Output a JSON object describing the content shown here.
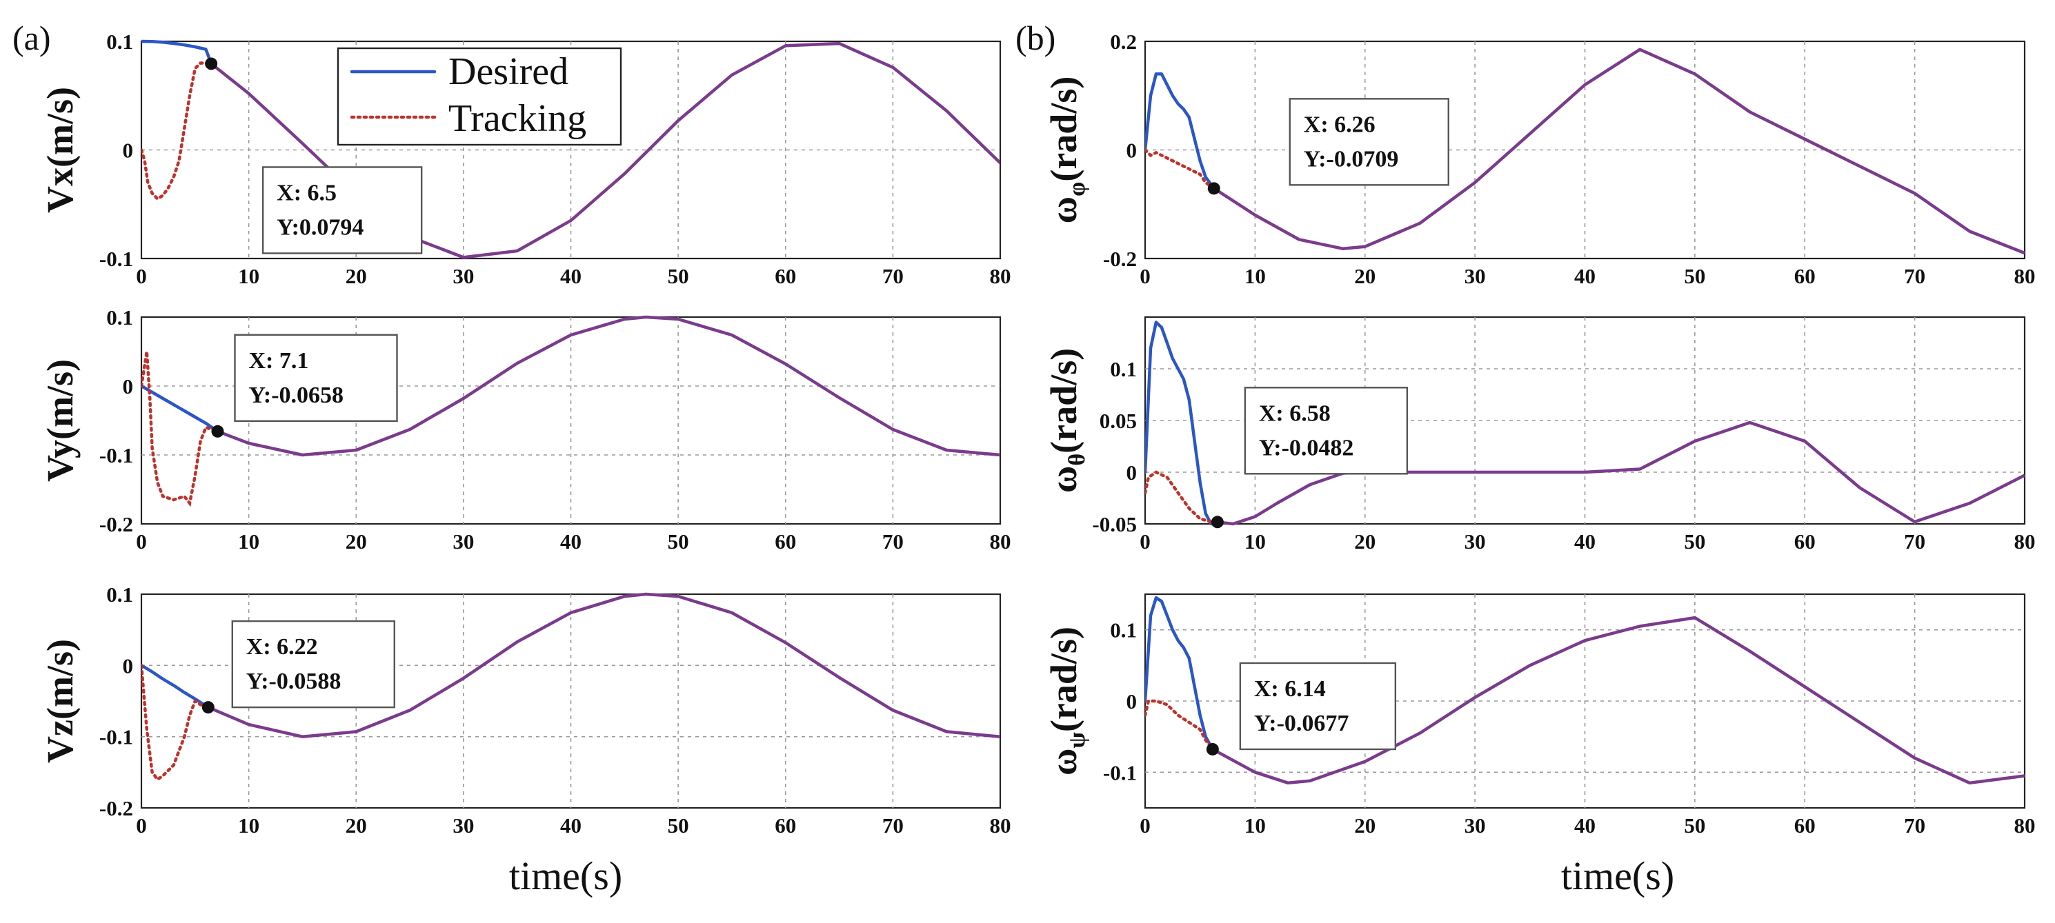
{
  "panel_labels": [
    "(a)",
    "(b)"
  ],
  "legend": {
    "desired": "Desired",
    "tracking": "Tracking"
  },
  "colors": {
    "desired": "#2a56c8",
    "tracking": "#c0312b",
    "combined": "#7b3b8c"
  },
  "chart_data": [
    {
      "type": "line",
      "id": "vx",
      "column": 0,
      "ylabel_main": "Vx",
      "ylabel_sub": "",
      "ylabel_rest": "(m/s)",
      "xlabel": "time(s)",
      "xlim": [
        0,
        80
      ],
      "ylim": [
        -0.1,
        0.1
      ],
      "xticks": [
        "0",
        "10",
        "20",
        "30",
        "40",
        "50",
        "60",
        "70",
        "80"
      ],
      "yticks": [
        {
          "v": 0.1,
          "t": "0.1"
        },
        {
          "v": 0,
          "t": "0"
        },
        {
          "v": -0.1,
          "t": "-0.1"
        }
      ],
      "series": [
        {
          "name": "Desired",
          "x": [
            0,
            1,
            2,
            3,
            4,
            5,
            6,
            6.5
          ],
          "y": [
            0.1,
            0.0998,
            0.0992,
            0.0981,
            0.0967,
            0.0949,
            0.0927,
            0.0794
          ]
        },
        {
          "name": "Tracking",
          "x": [
            0,
            0.3,
            0.6,
            1,
            1.5,
            2,
            2.5,
            3,
            3.5,
            4,
            4.5,
            5,
            5.5,
            6,
            6.5
          ],
          "y": [
            0,
            -0.01,
            -0.03,
            -0.04,
            -0.045,
            -0.042,
            -0.035,
            -0.025,
            -0.01,
            0.02,
            0.05,
            0.075,
            0.08,
            0.08,
            0.0794
          ]
        },
        {
          "name": "Combined",
          "x": [
            6.5,
            10,
            15,
            20,
            25,
            30,
            35,
            40,
            45,
            50,
            55,
            60,
            65,
            70,
            75,
            80
          ],
          "y": [
            0.0794,
            0.052,
            0.006,
            -0.041,
            -0.08,
            -0.099,
            -0.093,
            -0.065,
            -0.022,
            0.027,
            0.069,
            0.096,
            0.098,
            0.076,
            0.036,
            -0.012
          ]
        }
      ],
      "datatip": {
        "x": 6.5,
        "y": 0.0794,
        "label_x": "X: 6.5",
        "label_y": "Y:0.0794"
      }
    },
    {
      "type": "line",
      "id": "vy",
      "column": 0,
      "ylabel_main": "Vy",
      "ylabel_sub": "",
      "ylabel_rest": "(m/s)",
      "xlabel": "time(s)",
      "xlim": [
        0,
        80
      ],
      "ylim": [
        -0.2,
        0.1
      ],
      "xticks": [
        "0",
        "10",
        "20",
        "30",
        "40",
        "50",
        "60",
        "70",
        "80"
      ],
      "yticks": [
        {
          "v": 0.1,
          "t": "0.1"
        },
        {
          "v": 0,
          "t": "0"
        },
        {
          "v": -0.1,
          "t": "-0.1"
        },
        {
          "v": -0.2,
          "t": "-0.2"
        }
      ],
      "series": [
        {
          "name": "Desired",
          "x": [
            0,
            1,
            2,
            3,
            4,
            5,
            6,
            7.1
          ],
          "y": [
            0,
            -0.009,
            -0.018,
            -0.027,
            -0.036,
            -0.045,
            -0.054,
            -0.0658
          ]
        },
        {
          "name": "Tracking",
          "x": [
            0,
            0.3,
            0.5,
            0.8,
            1,
            1.5,
            2,
            3,
            4,
            4.5,
            5,
            5.5,
            6,
            7.1
          ],
          "y": [
            0,
            0.03,
            0.05,
            -0.02,
            -0.09,
            -0.14,
            -0.16,
            -0.165,
            -0.16,
            -0.17,
            -0.13,
            -0.08,
            -0.06,
            -0.0658
          ]
        },
        {
          "name": "Combined",
          "x": [
            7.1,
            10,
            15,
            20,
            25,
            30,
            35,
            40,
            45,
            47,
            50,
            55,
            60,
            65,
            70,
            75,
            80
          ],
          "y": [
            -0.0658,
            -0.083,
            -0.1,
            -0.093,
            -0.063,
            -0.018,
            0.033,
            0.074,
            0.097,
            0.1,
            0.097,
            0.074,
            0.032,
            -0.017,
            -0.063,
            -0.093,
            -0.1
          ]
        }
      ],
      "datatip": {
        "x": 7.1,
        "y": -0.0658,
        "label_x": "X: 7.1",
        "label_y": "Y:-0.0658"
      }
    },
    {
      "type": "line",
      "id": "vz",
      "column": 0,
      "ylabel_main": "Vz",
      "ylabel_sub": "",
      "ylabel_rest": "(m/s)",
      "xlabel": "time(s)",
      "xlim": [
        0,
        80
      ],
      "ylim": [
        -0.2,
        0.1
      ],
      "xticks": [
        "0",
        "10",
        "20",
        "30",
        "40",
        "50",
        "60",
        "70",
        "80"
      ],
      "yticks": [
        {
          "v": 0.1,
          "t": "0.1"
        },
        {
          "v": 0,
          "t": "0"
        },
        {
          "v": -0.1,
          "t": "-0.1"
        },
        {
          "v": -0.2,
          "t": "-0.2"
        }
      ],
      "series": [
        {
          "name": "Desired",
          "x": [
            0,
            1,
            2,
            3,
            4,
            5,
            6.22
          ],
          "y": [
            0,
            -0.009,
            -0.019,
            -0.028,
            -0.038,
            -0.047,
            -0.0588
          ]
        },
        {
          "name": "Tracking",
          "x": [
            0,
            0.5,
            1,
            1.5,
            2,
            3,
            4,
            4.5,
            5,
            5.5,
            6.22
          ],
          "y": [
            0,
            -0.09,
            -0.15,
            -0.16,
            -0.155,
            -0.14,
            -0.1,
            -0.07,
            -0.05,
            -0.055,
            -0.0588
          ]
        },
        {
          "name": "Combined",
          "x": [
            6.22,
            10,
            15,
            20,
            25,
            30,
            35,
            40,
            45,
            47,
            50,
            55,
            60,
            65,
            70,
            75,
            80
          ],
          "y": [
            -0.0588,
            -0.083,
            -0.1,
            -0.093,
            -0.063,
            -0.018,
            0.033,
            0.074,
            0.097,
            0.1,
            0.097,
            0.074,
            0.032,
            -0.017,
            -0.063,
            -0.093,
            -0.1
          ]
        }
      ],
      "datatip": {
        "x": 6.22,
        "y": -0.0588,
        "label_x": "X: 6.22",
        "label_y": "Y:-0.0588"
      }
    },
    {
      "type": "line",
      "id": "wphi",
      "column": 1,
      "ylabel_main": "ω",
      "ylabel_sub": "φ",
      "ylabel_rest": "(rad/s)",
      "xlabel": "time(s)",
      "xlim": [
        0,
        80
      ],
      "ylim": [
        -0.2,
        0.2
      ],
      "xticks": [
        "0",
        "10",
        "20",
        "30",
        "40",
        "50",
        "60",
        "70",
        "80"
      ],
      "yticks": [
        {
          "v": 0.2,
          "t": "0.2"
        },
        {
          "v": 0,
          "t": "0"
        },
        {
          "v": -0.2,
          "t": "-0.2"
        }
      ],
      "series": [
        {
          "name": "Desired",
          "x": [
            0,
            0.5,
            1,
            1.5,
            2,
            2.5,
            3,
            3.5,
            4,
            4.5,
            5,
            5.5,
            6.26
          ],
          "y": [
            0,
            0.1,
            0.14,
            0.14,
            0.12,
            0.1,
            0.085,
            0.075,
            0.06,
            0.02,
            -0.02,
            -0.05,
            -0.0709
          ]
        },
        {
          "name": "Tracking",
          "x": [
            0,
            0.5,
            1,
            2,
            3,
            4,
            5,
            5.5,
            6.26
          ],
          "y": [
            0,
            -0.01,
            -0.005,
            -0.015,
            -0.025,
            -0.035,
            -0.045,
            -0.06,
            -0.0709
          ]
        },
        {
          "name": "Combined",
          "x": [
            6.26,
            10,
            14,
            18,
            20,
            25,
            30,
            35,
            40,
            45,
            50,
            55,
            60,
            65,
            70,
            75,
            80
          ],
          "y": [
            -0.0709,
            -0.12,
            -0.165,
            -0.182,
            -0.178,
            -0.135,
            -0.06,
            0.03,
            0.12,
            0.185,
            0.14,
            0.07,
            0.02,
            -0.03,
            -0.08,
            -0.15,
            -0.19
          ]
        }
      ],
      "datatip": {
        "x": 6.26,
        "y": -0.0709,
        "label_x": "X: 6.26",
        "label_y": "Y:-0.0709"
      }
    },
    {
      "type": "line",
      "id": "wtheta",
      "column": 1,
      "ylabel_main": "ω",
      "ylabel_sub": "θ",
      "ylabel_rest": "(rad/s)",
      "xlabel": "time(s)",
      "xlim": [
        0,
        80
      ],
      "ylim": [
        -0.05,
        0.15
      ],
      "xticks": [
        "0",
        "10",
        "20",
        "30",
        "40",
        "50",
        "60",
        "70",
        "80"
      ],
      "yticks": [
        {
          "v": 0.1,
          "t": "0.1"
        },
        {
          "v": 0.05,
          "t": "0.05"
        },
        {
          "v": 0,
          "t": "0"
        },
        {
          "v": -0.05,
          "t": "-0.05"
        }
      ],
      "series": [
        {
          "name": "Desired",
          "x": [
            0,
            0.5,
            1,
            1.5,
            2,
            2.5,
            3,
            3.5,
            4,
            4.5,
            5,
            5.5,
            6,
            6.58
          ],
          "y": [
            0,
            0.12,
            0.145,
            0.14,
            0.125,
            0.11,
            0.1,
            0.09,
            0.07,
            0.03,
            -0.01,
            -0.04,
            -0.05,
            -0.05
          ]
        },
        {
          "name": "Tracking",
          "x": [
            0,
            0.3,
            1,
            2,
            3,
            4,
            5,
            6,
            6.58
          ],
          "y": [
            -0.02,
            -0.005,
            0,
            -0.005,
            -0.02,
            -0.035,
            -0.045,
            -0.048,
            -0.0482
          ]
        },
        {
          "name": "Combined",
          "x": [
            6.58,
            8,
            10,
            12,
            15,
            18,
            20,
            25,
            30,
            35,
            40,
            45,
            50,
            55,
            60,
            65,
            70,
            75,
            80
          ],
          "y": [
            -0.0482,
            -0.05,
            -0.043,
            -0.03,
            -0.012,
            -0.001,
            0,
            0,
            0,
            0,
            0,
            0.003,
            0.03,
            0.048,
            0.03,
            -0.015,
            -0.048,
            -0.03,
            -0.003
          ]
        }
      ],
      "datatip": {
        "x": 6.58,
        "y": -0.0482,
        "label_x": "X: 6.58",
        "label_y": "Y:-0.0482"
      }
    },
    {
      "type": "line",
      "id": "wpsi",
      "column": 1,
      "ylabel_main": "ω",
      "ylabel_sub": "ψ",
      "ylabel_rest": "(rad/s)",
      "xlabel": "time(s)",
      "xlim": [
        0,
        80
      ],
      "ylim": [
        -0.15,
        0.15
      ],
      "xticks": [
        "0",
        "10",
        "20",
        "30",
        "40",
        "50",
        "60",
        "70",
        "80"
      ],
      "yticks": [
        {
          "v": 0.1,
          "t": "0.1"
        },
        {
          "v": 0,
          "t": "0"
        },
        {
          "v": -0.1,
          "t": "-0.1"
        }
      ],
      "series": [
        {
          "name": "Desired",
          "x": [
            0,
            0.5,
            1,
            1.5,
            2,
            2.5,
            3,
            3.5,
            4,
            4.5,
            5,
            5.5,
            6.14
          ],
          "y": [
            0,
            0.12,
            0.145,
            0.14,
            0.12,
            0.1,
            0.085,
            0.075,
            0.06,
            0.02,
            -0.02,
            -0.05,
            -0.0677
          ]
        },
        {
          "name": "Tracking",
          "x": [
            0,
            0.3,
            1,
            2,
            3,
            4,
            5,
            5.5,
            6.14
          ],
          "y": [
            -0.02,
            0,
            0,
            -0.005,
            -0.02,
            -0.03,
            -0.04,
            -0.055,
            -0.0677
          ]
        },
        {
          "name": "Combined",
          "x": [
            6.14,
            10,
            13,
            15,
            20,
            25,
            30,
            35,
            40,
            45,
            50,
            55,
            60,
            65,
            70,
            75,
            80
          ],
          "y": [
            -0.0677,
            -0.1,
            -0.115,
            -0.112,
            -0.085,
            -0.045,
            0.005,
            0.05,
            0.085,
            0.105,
            0.117,
            0.07,
            0.02,
            -0.03,
            -0.08,
            -0.115,
            -0.105
          ]
        }
      ],
      "datatip": {
        "x": 6.14,
        "y": -0.0677,
        "label_x": "X: 6.14",
        "label_y": "Y:-0.0677"
      }
    }
  ]
}
